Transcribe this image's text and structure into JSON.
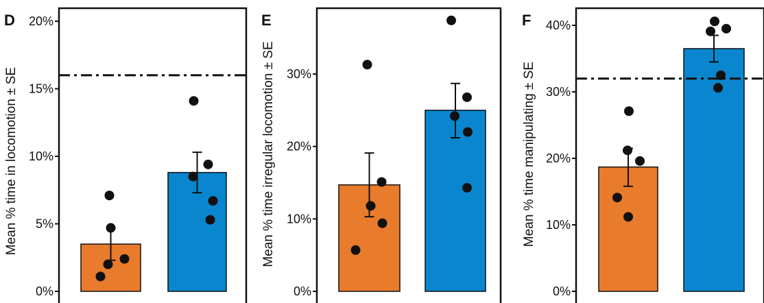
{
  "colors": {
    "orange": "#E87B2C",
    "blue": "#0A86CF",
    "point": "#111111",
    "frame": "#111111",
    "dash_line": "#111111"
  },
  "chart_data": [
    {
      "type": "bar",
      "panel": "D",
      "ylabel": "Mean % time in locomotion ± SE",
      "ylim": [
        0,
        20
      ],
      "yticks": [
        0,
        5,
        10,
        15,
        20
      ],
      "ytick_labels": [
        "0%",
        "5%",
        "10%",
        "15%",
        "20%"
      ],
      "reference_line": 16,
      "reference_line_style": "dash-dot",
      "bars": [
        {
          "color": "orange",
          "value": 3.5,
          "se": [
            2.3,
            4.7
          ],
          "points": [
            1.1,
            2.0,
            2.4,
            4.7,
            7.1
          ]
        },
        {
          "color": "blue",
          "value": 8.8,
          "se": [
            7.3,
            10.3
          ],
          "points": [
            5.3,
            6.7,
            8.5,
            9.4,
            14.1
          ]
        }
      ]
    },
    {
      "type": "bar",
      "panel": "E",
      "ylabel": "Mean % time irregular locomotion ± SE",
      "ylim": [
        0,
        39
      ],
      "yticks": [
        0,
        10,
        20,
        30
      ],
      "ytick_labels": [
        "0%",
        "10%",
        "20%",
        "30%"
      ],
      "reference_line": null,
      "bars": [
        {
          "color": "orange",
          "value": 14.7,
          "se": [
            10.3,
            19.1
          ],
          "points": [
            5.7,
            9.4,
            11.8,
            15.1,
            31.3
          ]
        },
        {
          "color": "blue",
          "value": 25.0,
          "se": [
            21.2,
            28.7
          ],
          "points": [
            14.3,
            22.0,
            24.2,
            26.8,
            37.4
          ]
        }
      ]
    },
    {
      "type": "bar",
      "panel": "F",
      "ylabel": "Mean % time manipulating ± SE",
      "ylim": [
        0,
        42
      ],
      "yticks": [
        0,
        10,
        20,
        30,
        40
      ],
      "ytick_labels": [
        "0%",
        "10%",
        "20%",
        "30%",
        "40%"
      ],
      "reference_line": 32,
      "reference_line_style": "dash-dot",
      "bars": [
        {
          "color": "orange",
          "value": 18.7,
          "se": [
            15.8,
            21.5
          ],
          "points": [
            11.2,
            14.1,
            19.6,
            21.2,
            27.1
          ]
        },
        {
          "color": "blue",
          "value": 36.5,
          "se": [
            34.5,
            38.5
          ],
          "points": [
            30.6,
            32.5,
            39.1,
            39.5,
            40.6
          ]
        }
      ]
    }
  ]
}
